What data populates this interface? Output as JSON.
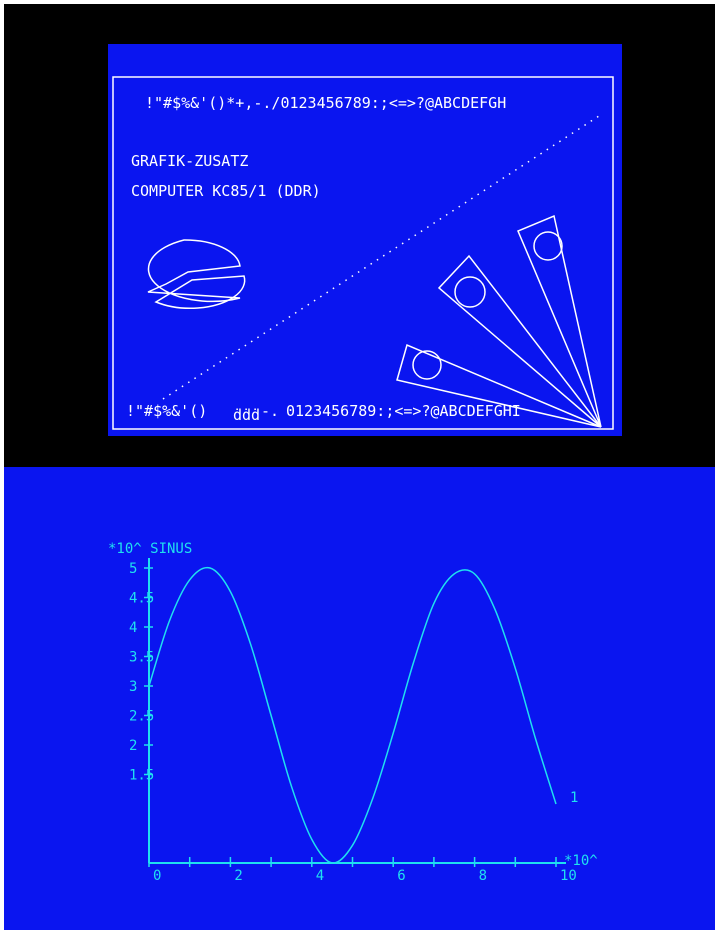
{
  "top_screen": {
    "charset_top": "!\"#$%&'()*+,-./0123456789:;<=>?@ABCDEFGH",
    "title_line_1": "GRAFIK-ZUSATZ",
    "title_line_2": "COMPUTER KC85/1 (DDR)",
    "charset_bottom_a": "!\"#$%&'()",
    "charset_bottom_b": "-.",
    "charset_bottom_c": "0123456789:;<=>?@ABCDEFGHI",
    "colors": {
      "background": "#0a15f0",
      "outer": "#000000",
      "foreground": "#ffffff"
    }
  },
  "chart_data": {
    "type": "line",
    "title": "*10^ SINUS",
    "xlabel": "*10^",
    "ylabel": "",
    "xlim": [
      0,
      10
    ],
    "ylim": [
      0,
      5
    ],
    "x_ticks": [
      "0",
      "2",
      "4",
      "6",
      "8",
      "10"
    ],
    "y_ticks": [
      "1.5",
      "2",
      "2.5",
      "3",
      "3.5",
      "4",
      "4.5",
      "5"
    ],
    "series": [
      {
        "name": "1",
        "x": [
          0,
          0.5,
          1,
          1.5,
          2,
          2.5,
          3,
          3.5,
          4,
          4.5,
          5,
          5.5,
          6,
          6.5,
          7,
          7.5,
          8,
          8.5,
          9,
          9.5,
          10
        ],
        "y": [
          3.0,
          4.1,
          4.8,
          5.0,
          4.6,
          3.7,
          2.5,
          1.3,
          0.4,
          0.0,
          0.3,
          1.1,
          2.2,
          3.4,
          4.4,
          4.9,
          4.9,
          4.3,
          3.3,
          2.1,
          1.0
        ]
      }
    ],
    "colors": {
      "background": "#0a15f0",
      "line": "#1fe0f0"
    }
  }
}
